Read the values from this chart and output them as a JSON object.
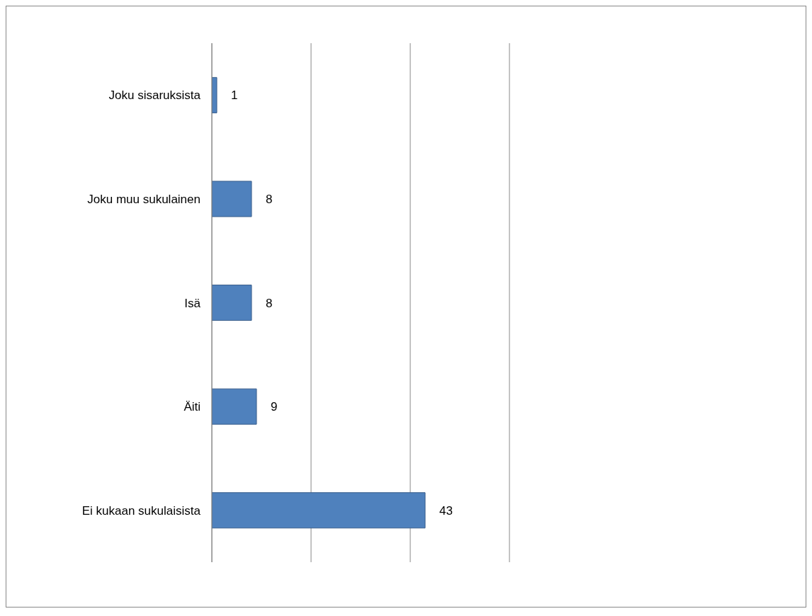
{
  "chart_data": {
    "type": "bar",
    "orientation": "horizontal",
    "categories": [
      "Joku sisaruksista",
      "Joku muu sukulainen",
      "Isä",
      "Äiti",
      "Ei kukaan sukulaisista"
    ],
    "values": [
      1,
      8,
      8,
      9,
      43
    ],
    "color": "#4f81bd",
    "xlim": [
      0,
      60
    ],
    "xticks": [
      {
        "value": 0,
        "label": null
      },
      {
        "value": 20,
        "label": null
      },
      {
        "value": 40,
        "label": null
      },
      {
        "value": 60,
        "label": null
      }
    ],
    "tick_labels": "y",
    "grid": "x",
    "data_labels": true,
    "legend": false
  }
}
